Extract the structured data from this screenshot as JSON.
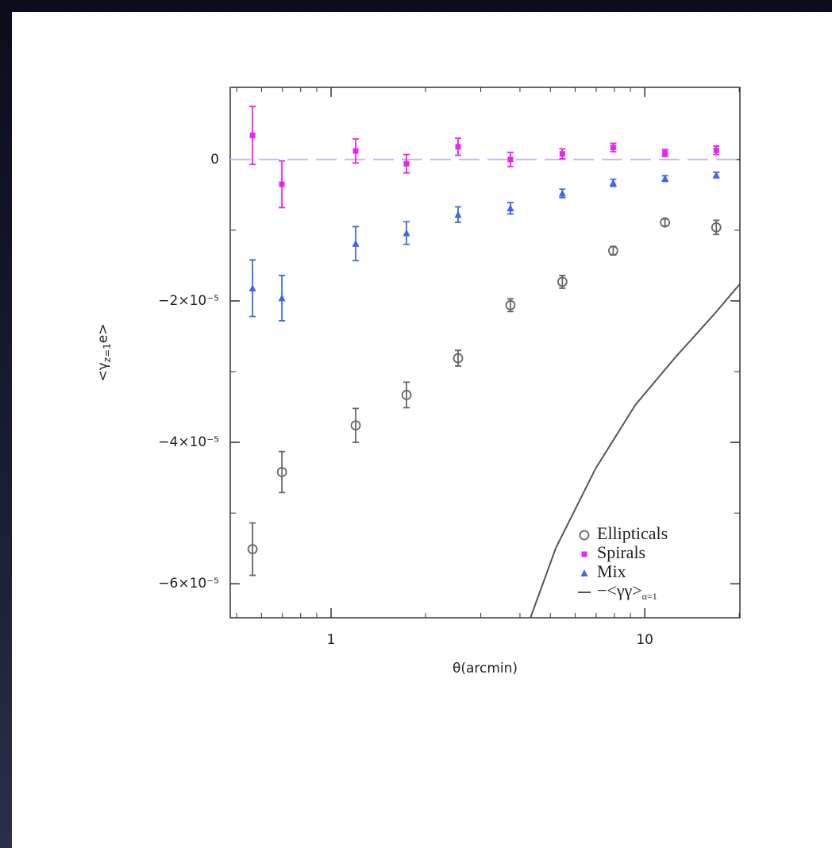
{
  "chart_data": {
    "type": "scatter",
    "xlabel": "θ(arcmin)",
    "ylabel_parts": [
      "<γ",
      "z=1",
      "e>"
    ],
    "xscale": "log",
    "xlim": [
      0.477,
      20.1
    ],
    "ylim": [
      1.02e-05,
      -6.48e-05
    ],
    "xticks": [
      1,
      10
    ],
    "xminorticks": [
      0.5,
      0.6,
      0.7,
      0.8,
      0.9,
      2,
      3,
      4,
      5,
      6,
      7,
      8,
      9,
      20
    ],
    "yticks": [
      0,
      {
        "value": -2e-05,
        "label": "−2×10⁻⁵"
      },
      {
        "value": -4e-05,
        "label": "−4×10⁻⁵"
      },
      {
        "value": -6e-05,
        "label": "−6×10⁻⁵"
      }
    ],
    "yminorticks": [
      -1e-05,
      -3e-05,
      -5e-05
    ],
    "zero_line": {
      "value": 0,
      "color": "#c9b8f0"
    },
    "legend": "lower right",
    "series": [
      {
        "name": "Ellipticals",
        "color": "#666666",
        "marker": "circle",
        "x": [
          0.562,
          0.697,
          1.198,
          1.74,
          2.54,
          3.73,
          5.46,
          7.93,
          11.6,
          16.9
        ],
        "values": [
          -5.51e-05,
          -4.42e-05,
          -3.76e-05,
          -3.33e-05,
          -2.81e-05,
          -2.06e-05,
          -1.73e-05,
          -1.29e-05,
          -8.9e-06,
          -9.6e-06
        ],
        "errors": [
          3.7e-06,
          2.9e-06,
          2.4e-06,
          1.8e-06,
          1.1e-06,
          9e-07,
          9e-07,
          6e-07,
          5e-07,
          1e-06
        ]
      },
      {
        "name": "Spirals",
        "color": "#ee22ee",
        "marker": "square",
        "x": [
          0.562,
          0.697,
          1.198,
          1.74,
          2.54,
          3.73,
          5.46,
          7.93,
          11.6,
          16.9
        ],
        "values": [
          3.4e-06,
          -3.5e-06,
          1.2e-06,
          -6e-07,
          1.8e-06,
          0.0,
          8e-07,
          1.7e-06,
          9e-07,
          1.3e-06
        ],
        "errors": [
          4.1e-06,
          3.3e-06,
          1.7e-06,
          1.3e-06,
          1.2e-06,
          1e-06,
          7e-07,
          6e-07,
          5e-07,
          6e-07
        ]
      },
      {
        "name": "Mix",
        "color": "#4466ee",
        "marker": "triangle",
        "x": [
          0.562,
          0.697,
          1.198,
          1.74,
          2.54,
          3.73,
          5.46,
          7.93,
          11.6,
          16.9
        ],
        "values": [
          -1.82e-05,
          -1.96e-05,
          -1.19e-05,
          -1.04e-05,
          -7.8e-06,
          -6.9e-06,
          -4.8e-06,
          -3.3e-06,
          -2.7e-06,
          -2.2e-06
        ],
        "errors": [
          4e-06,
          3.2e-06,
          2.4e-06,
          1.6e-06,
          1.1e-06,
          8e-07,
          6e-07,
          5e-07,
          4e-07,
          4e-07
        ]
      },
      {
        "name": "−<γγ>",
        "name_subscript": "α=1",
        "color": "#555555",
        "marker": "line",
        "x": [
          4.32,
          5.21,
          6.97,
          9.33,
          12.5,
          16.7,
          20.1
        ],
        "values": [
          -6.48e-05,
          -5.49e-05,
          -4.37e-05,
          -3.47e-05,
          -2.8e-05,
          -2.18e-05,
          -1.76e-05
        ]
      }
    ]
  }
}
